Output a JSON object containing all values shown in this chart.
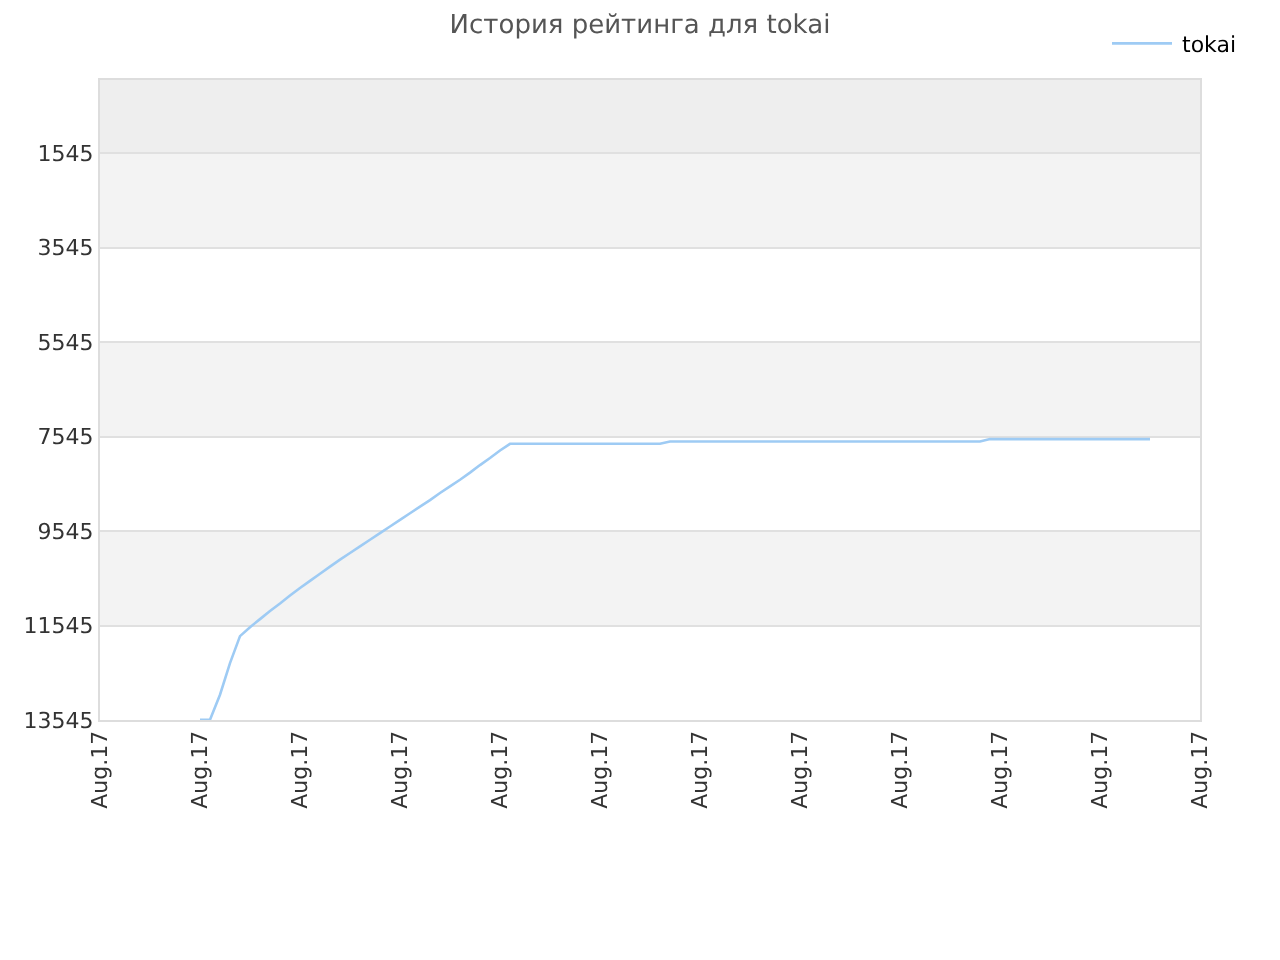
{
  "chart_data": {
    "type": "line",
    "title": "История рейтинга для tokai",
    "categories": [
      "Aug.17",
      null,
      null,
      null,
      null,
      null,
      null,
      null,
      null,
      null,
      "Aug.17",
      null,
      null,
      null,
      null,
      null,
      null,
      null,
      null,
      null,
      "Aug.17",
      null,
      null,
      null,
      null,
      null,
      null,
      null,
      null,
      null,
      "Aug.17",
      null,
      null,
      null,
      null,
      null,
      null,
      null,
      null,
      null,
      "Aug.17",
      null,
      null,
      null,
      null,
      null,
      null,
      null,
      null,
      null,
      "Aug.17",
      null,
      null,
      null,
      null,
      null,
      null,
      null,
      null,
      null,
      "Aug.17",
      null,
      null,
      null,
      null,
      null,
      null,
      null,
      null,
      null,
      "Aug.17",
      null,
      null,
      null,
      null,
      null,
      null,
      null,
      null,
      null,
      "Aug.17",
      null,
      null,
      null,
      null,
      null,
      null,
      null,
      null,
      null,
      "Aug.17",
      null,
      null,
      null,
      null,
      null,
      null,
      null,
      null,
      null,
      "Aug.17",
      null,
      null,
      null,
      null,
      null,
      null,
      null,
      null,
      null,
      "Aug.17"
    ],
    "ylim": [
      13545,
      0
    ],
    "yticks": [
      1545,
      3545,
      5545,
      7545,
      9545,
      11545,
      13545
    ],
    "series": [
      {
        "name": "tokai",
        "color": "#9ecbf4",
        "values": [
          null,
          null,
          null,
          null,
          null,
          null,
          null,
          null,
          null,
          null,
          13540,
          13540,
          13010,
          12340,
          11770,
          11580,
          11410,
          11240,
          11080,
          10910,
          10750,
          10600,
          10450,
          10300,
          10150,
          10010,
          9870,
          9730,
          9590,
          9450,
          9310,
          9170,
          9030,
          8890,
          8740,
          8600,
          8460,
          8310,
          8150,
          8000,
          7840,
          7700,
          7700,
          7700,
          7700,
          7700,
          7700,
          7700,
          7700,
          7700,
          7700,
          7700,
          7700,
          7700,
          7700,
          7700,
          7700,
          7650,
          7650,
          7650,
          7650,
          7650,
          7650,
          7650,
          7650,
          7650,
          7650,
          7650,
          7650,
          7650,
          7650,
          7650,
          7650,
          7650,
          7650,
          7650,
          7650,
          7650,
          7650,
          7650,
          7650,
          7650,
          7650,
          7650,
          7650,
          7650,
          7650,
          7650,
          7650,
          7600,
          7600,
          7600,
          7600,
          7600,
          7600,
          7600,
          7600,
          7600,
          7600,
          7600,
          7600,
          7600,
          7600,
          7600,
          7600,
          7600,
          null,
          null,
          null,
          null,
          null
        ]
      }
    ],
    "bands": [
      {
        "axis": "y",
        "from": 0,
        "to": 1545,
        "color": "#eeeeee"
      },
      {
        "axis": "y",
        "from": 1545,
        "to": 3545,
        "color": "#f3f3f3"
      },
      {
        "axis": "y",
        "from": 5545,
        "to": 7545,
        "color": "#f3f3f3"
      },
      {
        "axis": "y",
        "from": 9545,
        "to": 11545,
        "color": "#f3f3f3"
      }
    ],
    "grid": "y",
    "legend": "top right",
    "marker": "none",
    "line_style": "solid"
  }
}
